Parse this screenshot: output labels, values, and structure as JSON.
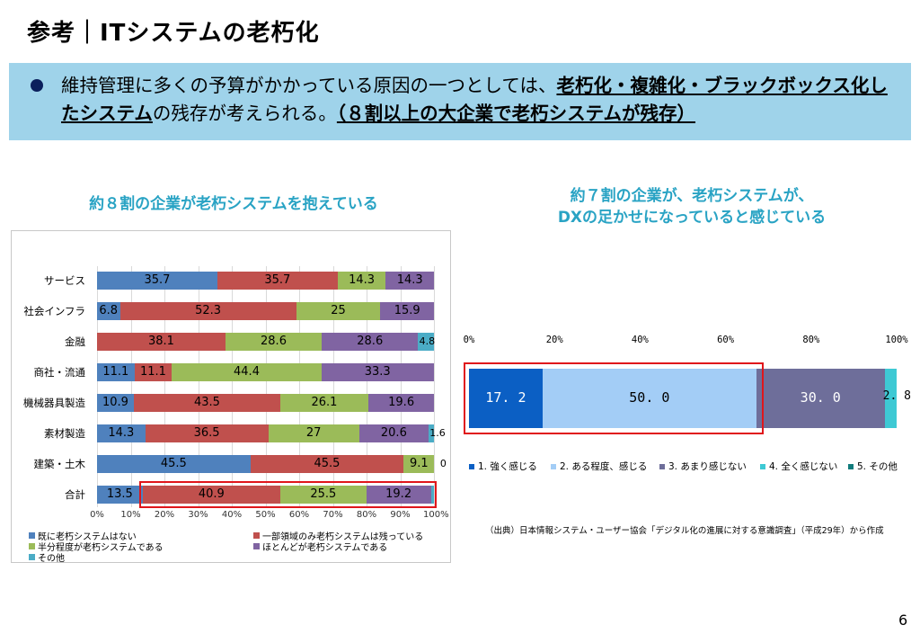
{
  "page": {
    "title": "参考｜ITシステムの老朽化",
    "page_number": "6"
  },
  "summary": {
    "text_1": "維持管理に多くの予算がかかっている原因の一つとしては、",
    "emphasis_1": "老朽化・複雑化・ブラックボックス化したシステム",
    "text_2": "の残存が考えられる。",
    "emphasis_2": "（８割以上の大企業で老朽システムが残存）"
  },
  "left_heading": "約８割の企業が老朽システムを抱えている",
  "right_heading_line1": "約７割の企業が、老朽システムが、",
  "right_heading_line2": "DXの足かせになっていると感じている",
  "source_note": "（出典）日本情報システム・ユーザー協会「デジタル化の進展に対する意識調査」（平成29年）から作成",
  "chart_data": [
    {
      "type": "bar",
      "orientation": "horizontal",
      "stacked": true,
      "title": "",
      "categories": [
        "サービス",
        "社会インフラ",
        "金融",
        "商社・流通",
        "機械器具製造",
        "素材製造",
        "建築・土木",
        "合計"
      ],
      "series": [
        {
          "name": "既に老朽システムはない",
          "color": "#4f81bd",
          "values": [
            35.7,
            6.8,
            0,
            11.1,
            10.9,
            14.3,
            45.5,
            13.5
          ],
          "labels": [
            "35.7",
            "6.8",
            "0",
            "11.1",
            "10.9",
            "14.3",
            "45.5",
            "13.5"
          ]
        },
        {
          "name": "一部領域のみ老朽システムは残っている",
          "color": "#c0504d",
          "values": [
            35.7,
            52.3,
            38.1,
            11.1,
            43.5,
            36.5,
            45.5,
            40.9
          ],
          "labels": [
            "35.7",
            "52.3",
            "38.1",
            "11.1",
            "43.5",
            "36.5",
            "45.5",
            "40.9"
          ]
        },
        {
          "name": "半分程度が老朽システムである",
          "color": "#9bbb59",
          "values": [
            14.3,
            25.0,
            28.6,
            44.4,
            26.1,
            27.0,
            9.1,
            25.5
          ],
          "labels": [
            "14.3",
            "25",
            "28.6",
            "44.4",
            "26.1",
            "27",
            "9.1",
            "25.5"
          ]
        },
        {
          "name": "ほとんどが老朽システムである",
          "color": "#8064a2",
          "values": [
            14.3,
            15.9,
            28.6,
            33.3,
            19.6,
            20.6,
            0,
            19.2
          ],
          "labels": [
            "14.3",
            "15.9",
            "28.6",
            "33.3",
            "19.6",
            "20.6",
            "0",
            "19.2"
          ]
        },
        {
          "name": "その他",
          "color": "#4bacc6",
          "values": [
            0,
            0,
            4.8,
            0,
            0,
            1.6,
            0,
            0.9
          ],
          "labels": [
            "",
            "",
            "4.8",
            "",
            "",
            "1.6",
            "",
            ""
          ]
        }
      ],
      "x_ticks": [
        "0%",
        "10%",
        "20%",
        "30%",
        "40%",
        "50%",
        "60%",
        "70%",
        "80%",
        "90%",
        "100%"
      ],
      "xlim": [
        0,
        100
      ],
      "grid": true,
      "legend": "bottom",
      "highlight": {
        "category": "合計",
        "series": [
          "一部領域のみ老朽システムは残っている",
          "半分程度が老朽システムである",
          "ほとんどが老朽システムである"
        ]
      }
    },
    {
      "type": "bar",
      "orientation": "horizontal",
      "stacked": true,
      "title": "",
      "categories": [
        ""
      ],
      "series": [
        {
          "name": "1. 強く感じる",
          "color": "#0b5fc4",
          "values": [
            17.2
          ],
          "label": "17. 2",
          "label_color": "#ffffff"
        },
        {
          "name": "2. ある程度、感じる",
          "color": "#a3cdf6",
          "values": [
            50.0
          ],
          "label": "50. 0",
          "label_color": "#000000"
        },
        {
          "name": "3. あまり感じない",
          "color": "#6e6e9a",
          "values": [
            30.0
          ],
          "label": "30. 0",
          "label_color": "#ffffff"
        },
        {
          "name": "4. 全く感じない",
          "color": "#3ec9d4",
          "values": [
            2.8
          ],
          "label": "2. 8",
          "label_color": "#000000"
        },
        {
          "name": "5. その他",
          "color": "#127c7c",
          "values": [
            0
          ],
          "label": "",
          "label_color": "#000000"
        }
      ],
      "x_ticks": [
        "0%",
        "20%",
        "40%",
        "60%",
        "80%",
        "100%"
      ],
      "xlim": [
        0,
        100
      ],
      "grid": false,
      "legend": "bottom",
      "highlight": {
        "series": [
          "1. 強く感じる",
          "2. ある程度、感じる"
        ]
      }
    }
  ]
}
